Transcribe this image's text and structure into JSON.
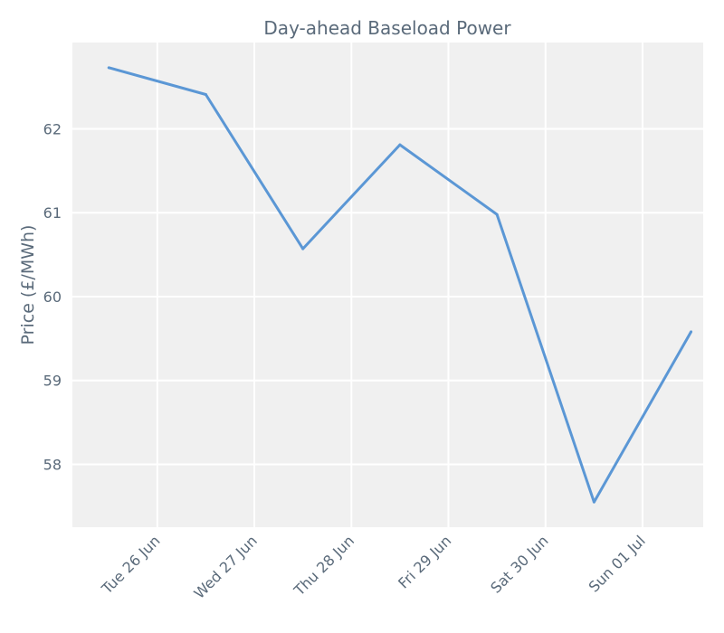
{
  "chart_data": {
    "type": "line",
    "title": "Day-ahead Baseload Power",
    "xlabel": "",
    "ylabel": "Price (£/MWh)",
    "x": [
      "2018-06-25T12:00",
      "2018-06-26T12:00",
      "2018-06-27T12:00",
      "2018-06-28T12:00",
      "2018-06-29T12:00",
      "2018-06-30T12:00",
      "2018-07-01T12:00"
    ],
    "series": [
      {
        "values": [
          62.73,
          62.41,
          60.57,
          61.81,
          60.98,
          57.55,
          59.58
        ]
      }
    ],
    "x_ticks": [
      {
        "date": "2018-06-26",
        "label": "Tue 26 Jun"
      },
      {
        "date": "2018-06-27",
        "label": "Wed 27 Jun"
      },
      {
        "date": "2018-06-28",
        "label": "Thu 28 Jun"
      },
      {
        "date": "2018-06-29",
        "label": "Fri 29 Jun"
      },
      {
        "date": "2018-06-30",
        "label": "Sat 30 Jun"
      },
      {
        "date": "2018-07-01",
        "label": "Sun 01 Jul"
      }
    ],
    "y_ticks": [
      58,
      59,
      60,
      61,
      62
    ],
    "xlim": [
      "2018-06-25T03:00",
      "2018-07-01T15:00"
    ],
    "ylim": [
      57.25,
      63.03
    ],
    "grid": true,
    "colors": {
      "line": "#5b97d5",
      "plot_bg": "#f0f0f0",
      "grid": "#ffffff",
      "text": "#5a6a7a"
    }
  }
}
